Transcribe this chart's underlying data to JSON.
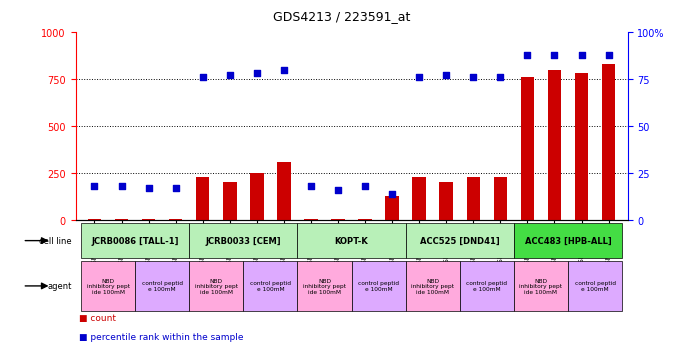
{
  "title": "GDS4213 / 223591_at",
  "samples": [
    "GSM518496",
    "GSM518497",
    "GSM518494",
    "GSM518495",
    "GSM542395",
    "GSM542396",
    "GSM542393",
    "GSM542394",
    "GSM542399",
    "GSM542400",
    "GSM542397",
    "GSM542398",
    "GSM542403",
    "GSM542404",
    "GSM542401",
    "GSM542402",
    "GSM542407",
    "GSM542408",
    "GSM542405",
    "GSM542406"
  ],
  "counts": [
    5,
    5,
    5,
    5,
    230,
    205,
    250,
    310,
    5,
    5,
    5,
    130,
    230,
    205,
    230,
    230,
    760,
    800,
    780,
    830
  ],
  "percentiles": [
    18,
    18,
    17,
    17,
    76,
    77,
    78,
    80,
    18,
    16,
    18,
    14,
    76,
    77,
    76,
    76,
    88,
    88,
    88,
    88
  ],
  "cell_lines": [
    {
      "label": "JCRB0086 [TALL-1]",
      "start": 0,
      "end": 4,
      "color": "#b8f0b8"
    },
    {
      "label": "JCRB0033 [CEM]",
      "start": 4,
      "end": 8,
      "color": "#b8f0b8"
    },
    {
      "label": "KOPT-K",
      "start": 8,
      "end": 12,
      "color": "#b8f0b8"
    },
    {
      "label": "ACC525 [DND41]",
      "start": 12,
      "end": 16,
      "color": "#b8f0b8"
    },
    {
      "label": "ACC483 [HPB-ALL]",
      "start": 16,
      "end": 20,
      "color": "#44dd44"
    }
  ],
  "agents": [
    {
      "label": "NBD\ninhibitory pept\nide 100mM",
      "start": 0,
      "end": 2,
      "color": "#ffaadd"
    },
    {
      "label": "control peptid\ne 100mM",
      "start": 2,
      "end": 4,
      "color": "#ddaaff"
    },
    {
      "label": "NBD\ninhibitory pept\nide 100mM",
      "start": 4,
      "end": 6,
      "color": "#ffaadd"
    },
    {
      "label": "control peptid\ne 100mM",
      "start": 6,
      "end": 8,
      "color": "#ddaaff"
    },
    {
      "label": "NBD\ninhibitory pept\nide 100mM",
      "start": 8,
      "end": 10,
      "color": "#ffaadd"
    },
    {
      "label": "control peptid\ne 100mM",
      "start": 10,
      "end": 12,
      "color": "#ddaaff"
    },
    {
      "label": "NBD\ninhibitory pept\nide 100mM",
      "start": 12,
      "end": 14,
      "color": "#ffaadd"
    },
    {
      "label": "control peptid\ne 100mM",
      "start": 14,
      "end": 16,
      "color": "#ddaaff"
    },
    {
      "label": "NBD\ninhibitory pept\nide 100mM",
      "start": 16,
      "end": 18,
      "color": "#ffaadd"
    },
    {
      "label": "control peptid\ne 100mM",
      "start": 18,
      "end": 20,
      "color": "#ddaaff"
    }
  ],
  "bar_color": "#CC0000",
  "dot_color": "#0000CC",
  "ylim_left": [
    0,
    1000
  ],
  "ylim_right": [
    0,
    100
  ],
  "yticks_left": [
    0,
    250,
    500,
    750,
    1000
  ],
  "yticks_right": [
    0,
    25,
    50,
    75,
    100
  ],
  "grid_lines": [
    250,
    500,
    750
  ],
  "background_color": "#ffffff",
  "chart_bg": "#ffffff"
}
